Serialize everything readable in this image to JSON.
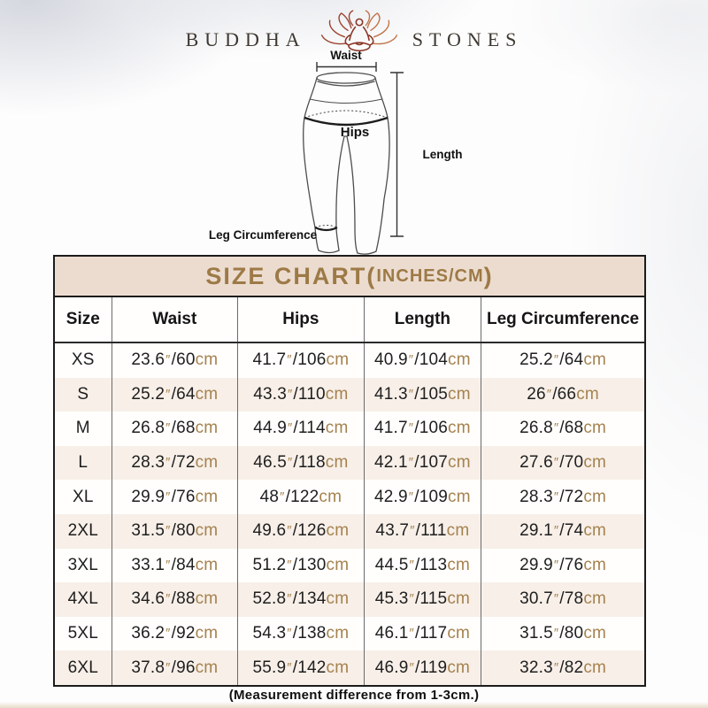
{
  "brand": {
    "left": "BUDDHA",
    "right": "STONES",
    "icon": "lotus-meditation-icon"
  },
  "diagram": {
    "waist_label": "Waist",
    "hips_label": "Hips",
    "length_label": "Length",
    "leg_label": "Leg Circumference"
  },
  "size_chart": {
    "title_main": "SIZE CHART",
    "title_open": "(",
    "title_unit": "INCHES/CM",
    "title_close": ")",
    "columns": [
      "Size",
      "Waist",
      "Hips",
      "Length",
      "Leg Circumference"
    ],
    "format": {
      "inch_mark": "″",
      "separator": "/",
      "cm_suffix": "cm"
    },
    "rows": [
      {
        "size": "XS",
        "waist": {
          "in": "23.6",
          "cm": "60"
        },
        "hips": {
          "in": "41.7",
          "cm": "106"
        },
        "length": {
          "in": "40.9",
          "cm": "104"
        },
        "leg": {
          "in": "25.2",
          "cm": "64"
        }
      },
      {
        "size": "S",
        "waist": {
          "in": "25.2",
          "cm": "64"
        },
        "hips": {
          "in": "43.3",
          "cm": "110"
        },
        "length": {
          "in": "41.3",
          "cm": "105"
        },
        "leg": {
          "in": "26",
          "cm": "66"
        }
      },
      {
        "size": "M",
        "waist": {
          "in": "26.8",
          "cm": "68"
        },
        "hips": {
          "in": "44.9",
          "cm": "114"
        },
        "length": {
          "in": "41.7",
          "cm": "106"
        },
        "leg": {
          "in": "26.8",
          "cm": "68"
        }
      },
      {
        "size": "L",
        "waist": {
          "in": "28.3",
          "cm": "72"
        },
        "hips": {
          "in": "46.5",
          "cm": "118"
        },
        "length": {
          "in": "42.1",
          "cm": "107"
        },
        "leg": {
          "in": "27.6",
          "cm": "70"
        }
      },
      {
        "size": "XL",
        "waist": {
          "in": "29.9",
          "cm": "76"
        },
        "hips": {
          "in": "48",
          "cm": "122"
        },
        "length": {
          "in": "42.9",
          "cm": "109"
        },
        "leg": {
          "in": "28.3",
          "cm": "72"
        }
      },
      {
        "size": "2XL",
        "waist": {
          "in": "31.5",
          "cm": "80"
        },
        "hips": {
          "in": "49.6",
          "cm": "126"
        },
        "length": {
          "in": "43.7",
          "cm": "111"
        },
        "leg": {
          "in": "29.1",
          "cm": "74"
        }
      },
      {
        "size": "3XL",
        "waist": {
          "in": "33.1",
          "cm": "84"
        },
        "hips": {
          "in": "51.2",
          "cm": "130"
        },
        "length": {
          "in": "44.5",
          "cm": "113"
        },
        "leg": {
          "in": "29.9",
          "cm": "76"
        }
      },
      {
        "size": "4XL",
        "waist": {
          "in": "34.6",
          "cm": "88"
        },
        "hips": {
          "in": "52.8",
          "cm": "134"
        },
        "length": {
          "in": "45.3",
          "cm": "115"
        },
        "leg": {
          "in": "30.7",
          "cm": "78"
        }
      },
      {
        "size": "5XL",
        "waist": {
          "in": "36.2",
          "cm": "92"
        },
        "hips": {
          "in": "54.3",
          "cm": "138"
        },
        "length": {
          "in": "46.1",
          "cm": "117"
        },
        "leg": {
          "in": "31.5",
          "cm": "80"
        }
      },
      {
        "size": "6XL",
        "waist": {
          "in": "37.8",
          "cm": "96"
        },
        "hips": {
          "in": "55.9",
          "cm": "142"
        },
        "length": {
          "in": "46.9",
          "cm": "119"
        },
        "leg": {
          "in": "32.3",
          "cm": "82"
        }
      }
    ],
    "footnote": "(Measurement difference from 1-3cm.)"
  },
  "chart_data": {
    "type": "table",
    "title": "SIZE CHART (INCHES/CM)",
    "columns": [
      "Size",
      "Waist",
      "Hips",
      "Length",
      "Leg Circumference"
    ],
    "rows": [
      [
        "XS",
        "23.6\"/60cm",
        "41.7\"/106cm",
        "40.9\"/104cm",
        "25.2\"/64cm"
      ],
      [
        "S",
        "25.2\"/64cm",
        "43.3\"/110cm",
        "41.3\"/105cm",
        "26\"/66cm"
      ],
      [
        "M",
        "26.8\"/68cm",
        "44.9\"/114cm",
        "41.7\"/106cm",
        "26.8\"/68cm"
      ],
      [
        "L",
        "28.3\"/72cm",
        "46.5\"/118cm",
        "42.1\"/107cm",
        "27.6\"/70cm"
      ],
      [
        "XL",
        "29.9\"/76cm",
        "48\"/122cm",
        "42.9\"/109cm",
        "28.3\"/72cm"
      ],
      [
        "2XL",
        "31.5\"/80cm",
        "49.6\"/126cm",
        "43.7\"/111cm",
        "29.1\"/74cm"
      ],
      [
        "3XL",
        "33.1\"/84cm",
        "51.2\"/130cm",
        "44.5\"/113cm",
        "29.9\"/76cm"
      ],
      [
        "4XL",
        "34.6\"/88cm",
        "52.8\"/134cm",
        "45.3\"/115cm",
        "30.7\"/78cm"
      ],
      [
        "5XL",
        "36.2\"/92cm",
        "54.3\"/138cm",
        "46.1\"/117cm",
        "31.5\"/80cm"
      ],
      [
        "6XL",
        "37.8\"/96cm",
        "55.9\"/142cm",
        "46.9\"/119cm",
        "32.3\"/82cm"
      ]
    ],
    "footnote": "(Measurement difference from 1-3cm.)"
  },
  "colors": {
    "title_gold": "#9d7a46",
    "unit_tan": "#a5824e",
    "title_band_bg": "#ecdcd0",
    "alt_row_bg": "#f7efe8",
    "logo_maroon": "#8a3524",
    "logo_copper": "#c0744a"
  }
}
